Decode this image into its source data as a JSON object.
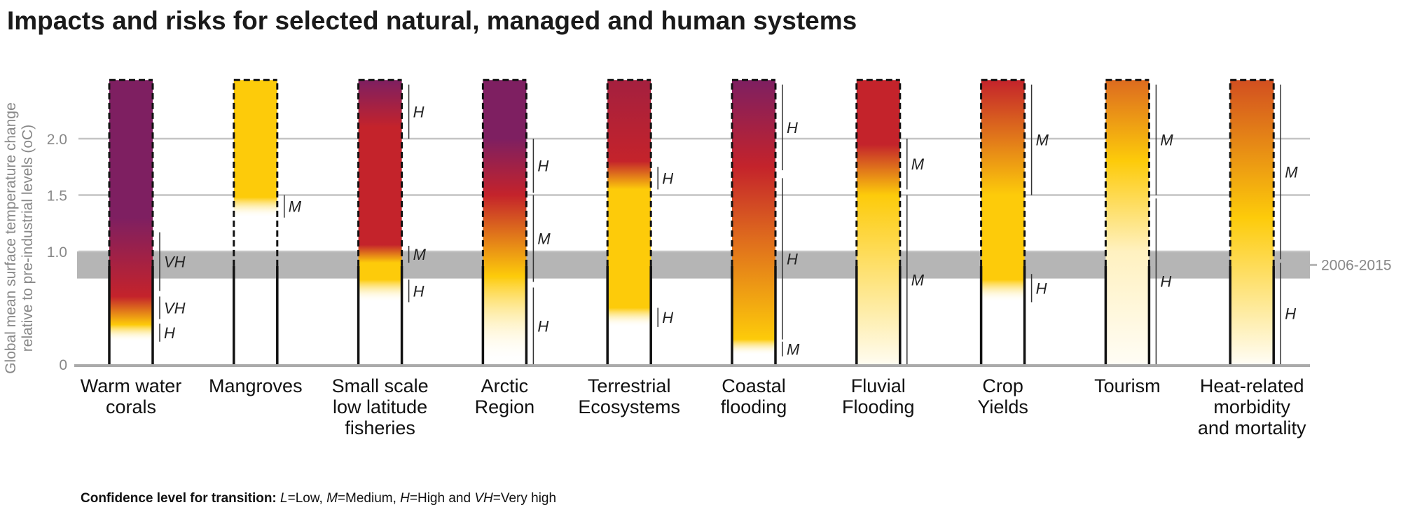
{
  "chart_data": {
    "type": "bar",
    "title": "Impacts and risks for selected natural, managed and human systems",
    "ylabel_lines": [
      "Global mean surface temperature change",
      "relative to pre-industrial levels (oC)"
    ],
    "ylim": [
      0,
      2.52
    ],
    "yticks": [
      {
        "value": 0,
        "label": "0"
      },
      {
        "value": 1.0,
        "label": "1.0"
      },
      {
        "value": 1.5,
        "label": "1.5"
      },
      {
        "value": 2.0,
        "label": "2.0"
      }
    ],
    "grid": true,
    "reference_band": {
      "label": "2006-2015",
      "range": [
        0.76,
        1.0
      ],
      "color": "#b5b5b5"
    },
    "dashed_above": 0.87,
    "colors": {
      "undetectable": "#ffffff",
      "moderate": "#fdcb0a",
      "high": "#c4232b",
      "very_high": "#7e1f61"
    },
    "categories": [
      {
        "label": [
          "Warm water",
          "corals"
        ],
        "stops": [
          [
            0.2,
            "#ffffff"
          ],
          [
            0.35,
            "#fdcb0a"
          ],
          [
            0.6,
            "#c4232b"
          ],
          [
            1.3,
            "#7e1f61"
          ],
          [
            2.52,
            "#7e1f61"
          ]
        ],
        "transitions": [
          {
            "range": [
              0.2,
              0.36
            ],
            "confidence": "H"
          },
          {
            "range": [
              0.4,
              0.6
            ],
            "confidence": "VH"
          },
          {
            "range": [
              0.65,
              1.17
            ],
            "confidence": "VH"
          }
        ]
      },
      {
        "label": [
          "Mangroves"
        ],
        "stops": [
          [
            1.3,
            "#ffffff"
          ],
          [
            1.48,
            "#fdcb0a"
          ],
          [
            2.52,
            "#fdcb0a"
          ]
        ],
        "transitions": [
          {
            "range": [
              1.3,
              1.5
            ],
            "confidence": "M"
          }
        ]
      },
      {
        "label": [
          "Small scale",
          "low latitude",
          "fisheries"
        ],
        "stops": [
          [
            0.55,
            "#ffffff"
          ],
          [
            0.75,
            "#fdcb0a"
          ],
          [
            0.9,
            "#fdcb0a"
          ],
          [
            1.06,
            "#c4232b"
          ],
          [
            2.1,
            "#c4232b"
          ],
          [
            2.52,
            "#7e1f61"
          ]
        ],
        "transitions": [
          {
            "range": [
              0.55,
              0.75
            ],
            "confidence": "H"
          },
          {
            "range": [
              0.9,
              1.05
            ],
            "confidence": "M"
          },
          {
            "range": [
              2.0,
              2.48
            ],
            "confidence": "H"
          }
        ]
      },
      {
        "label": [
          "Arctic",
          "Region"
        ],
        "stops": [
          [
            0.0,
            "#ffffff"
          ],
          [
            0.78,
            "#fdcb0a"
          ],
          [
            1.5,
            "#c4232b"
          ],
          [
            2.0,
            "#7e1f61"
          ],
          [
            2.52,
            "#7e1f61"
          ]
        ],
        "transitions": [
          {
            "range": [
              0.0,
              0.68
            ],
            "confidence": "H"
          },
          {
            "range": [
              0.73,
              1.5
            ],
            "confidence": "M"
          },
          {
            "range": [
              1.52,
              2.0
            ],
            "confidence": "H"
          }
        ]
      },
      {
        "label": [
          "Terrestrial",
          "Ecosystems"
        ],
        "stops": [
          [
            0.33,
            "#ffffff"
          ],
          [
            0.5,
            "#fdcb0a"
          ],
          [
            1.55,
            "#fdcb0a"
          ],
          [
            1.8,
            "#c4232b"
          ],
          [
            2.52,
            "#a4203f"
          ]
        ],
        "transitions": [
          {
            "range": [
              0.33,
              0.5
            ],
            "confidence": "H"
          },
          {
            "range": [
              1.55,
              1.75
            ],
            "confidence": "H"
          }
        ]
      },
      {
        "label": [
          "Coastal",
          "flooding"
        ],
        "stops": [
          [
            0.08,
            "#ffffff"
          ],
          [
            0.22,
            "#fdcb0a"
          ],
          [
            1.1,
            "#df6d1d"
          ],
          [
            1.75,
            "#c4232b"
          ],
          [
            2.52,
            "#7e1f61"
          ]
        ],
        "transitions": [
          {
            "range": [
              0.07,
              0.2
            ],
            "confidence": "M"
          },
          {
            "range": [
              0.22,
              1.65
            ],
            "confidence": "H"
          },
          {
            "range": [
              1.72,
              2.48
            ],
            "confidence": "H"
          }
        ]
      },
      {
        "label": [
          "Fluvial",
          "Flooding"
        ],
        "stops": [
          [
            0.0,
            "#fffcf0"
          ],
          [
            1.5,
            "#fdcb0a"
          ],
          [
            1.95,
            "#c4232b"
          ],
          [
            2.52,
            "#c4232b"
          ]
        ],
        "transitions": [
          {
            "range": [
              0.0,
              1.5
            ],
            "confidence": "M"
          },
          {
            "range": [
              1.55,
              2.0
            ],
            "confidence": "M"
          }
        ]
      },
      {
        "label": [
          "Crop",
          "Yields"
        ],
        "stops": [
          [
            0.55,
            "#ffffff"
          ],
          [
            0.75,
            "#fdcb0a"
          ],
          [
            1.5,
            "#fdcb0a"
          ],
          [
            2.52,
            "#c4232b"
          ]
        ],
        "transitions": [
          {
            "range": [
              0.55,
              0.8
            ],
            "confidence": "H"
          },
          {
            "range": [
              1.5,
              2.48
            ],
            "confidence": "M"
          }
        ]
      },
      {
        "label": [
          "Tourism"
        ],
        "stops": [
          [
            0.0,
            "#fffdf5"
          ],
          [
            1.0,
            "#fff1c0"
          ],
          [
            1.8,
            "#fdcb0a"
          ],
          [
            2.52,
            "#dd6b1f"
          ]
        ],
        "transitions": [
          {
            "range": [
              0.0,
              1.47
            ],
            "confidence": "H"
          },
          {
            "range": [
              1.5,
              2.48
            ],
            "confidence": "M"
          }
        ]
      },
      {
        "label": [
          "Heat-related",
          "morbidity",
          "and mortality"
        ],
        "stops": [
          [
            0.0,
            "#fffdf5"
          ],
          [
            1.3,
            "#fdcb0a"
          ],
          [
            2.52,
            "#d24f20"
          ]
        ],
        "transitions": [
          {
            "range": [
              0.0,
              0.9
            ],
            "confidence": "H"
          },
          {
            "range": [
              0.93,
              2.48
            ],
            "confidence": "M"
          }
        ]
      }
    ],
    "footnote": {
      "bold": "Confidence level  for transition: ",
      "parts": [
        {
          "i": "L",
          "t": "=Low, "
        },
        {
          "i": "M",
          "t": "=Medium, "
        },
        {
          "i": "H",
          "t": "=High and "
        },
        {
          "i": "VH",
          "t": "=Very high"
        }
      ]
    }
  }
}
